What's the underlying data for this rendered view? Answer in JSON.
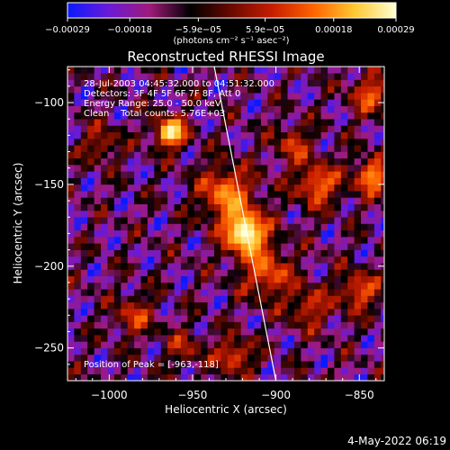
{
  "chart_data": {
    "type": "heatmap",
    "title": "Reconstructed RHESSI Image",
    "xlabel": "Heliocentric X (arcsec)",
    "ylabel": "Heliocentric Y (arcsec)",
    "xlim": [
      -1025,
      -835
    ],
    "ylim": [
      -270,
      -78
    ],
    "x_ticks": [
      -1000,
      -950,
      -900,
      -850
    ],
    "x_tick_labels": [
      "−1000",
      "−950",
      "−900",
      "−850"
    ],
    "y_ticks": [
      -100,
      -150,
      -200,
      -250
    ],
    "y_tick_labels": [
      "−100",
      "−150",
      "−200",
      "−250"
    ],
    "colorbar": {
      "range": [
        -0.00029,
        0.00029
      ],
      "ticks": [
        -0.00029,
        -0.00018,
        -5.9e-05,
        5.9e-05,
        0.00018,
        0.00029
      ],
      "tick_labels": [
        "−0.00029",
        "−0.00018",
        "−5.9e−05",
        "5.9e−05",
        "0.00018",
        "0.00029"
      ],
      "unit_label": "(photons cm⁻² s⁻¹ asec⁻²)",
      "colormap": [
        "#0a1aff",
        "#6a1ad8",
        "#a01a7a",
        "#000000",
        "#6a0a00",
        "#c81e00",
        "#ff6400",
        "#ffc832",
        "#ffffd2"
      ]
    },
    "annotations": [
      "28-Jul-2003 04:45:32.000 to 04:51:32.000",
      "Detectors: 3F 4F 5F 6F 7F 8F, Att 0",
      "Energy Range: 25.0 - 50.0 keV",
      "Clean    Total counts: 5.76E+03"
    ],
    "peak_label": "Position of Peak = [-963,-118]",
    "peak_position": [
      -963,
      -118
    ],
    "limb_line": {
      "start": [
        -937,
        -78
      ],
      "end": [
        -900,
        -270
      ]
    },
    "sources": [
      {
        "x": -963,
        "y": -118,
        "amplitude": 1.0,
        "sigma": 7
      },
      {
        "x": -918,
        "y": -180,
        "amplitude": 0.95,
        "sigma": 10
      },
      {
        "x": -930,
        "y": -155,
        "amplitude": 0.7,
        "sigma": 12
      },
      {
        "x": -905,
        "y": -205,
        "amplitude": 0.6,
        "sigma": 11
      },
      {
        "x": -875,
        "y": -150,
        "amplitude": 0.65,
        "sigma": 10
      },
      {
        "x": -842,
        "y": -145,
        "amplitude": 0.75,
        "sigma": 8
      },
      {
        "x": -843,
        "y": -95,
        "amplitude": 0.6,
        "sigma": 9
      },
      {
        "x": -850,
        "y": -215,
        "amplitude": 0.6,
        "sigma": 9
      },
      {
        "x": -880,
        "y": -225,
        "amplitude": 0.5,
        "sigma": 9
      },
      {
        "x": -925,
        "y": -255,
        "amplitude": 0.6,
        "sigma": 8
      },
      {
        "x": -985,
        "y": -230,
        "amplitude": 0.5,
        "sigma": 9
      },
      {
        "x": -1005,
        "y": -125,
        "amplitude": 0.45,
        "sigma": 8
      },
      {
        "x": -955,
        "y": -250,
        "amplitude": 0.4,
        "sigma": 8
      },
      {
        "x": -890,
        "y": -125,
        "amplitude": 0.5,
        "sigma": 8
      }
    ]
  },
  "footer": {
    "date": "4-May-2022 06:19"
  }
}
